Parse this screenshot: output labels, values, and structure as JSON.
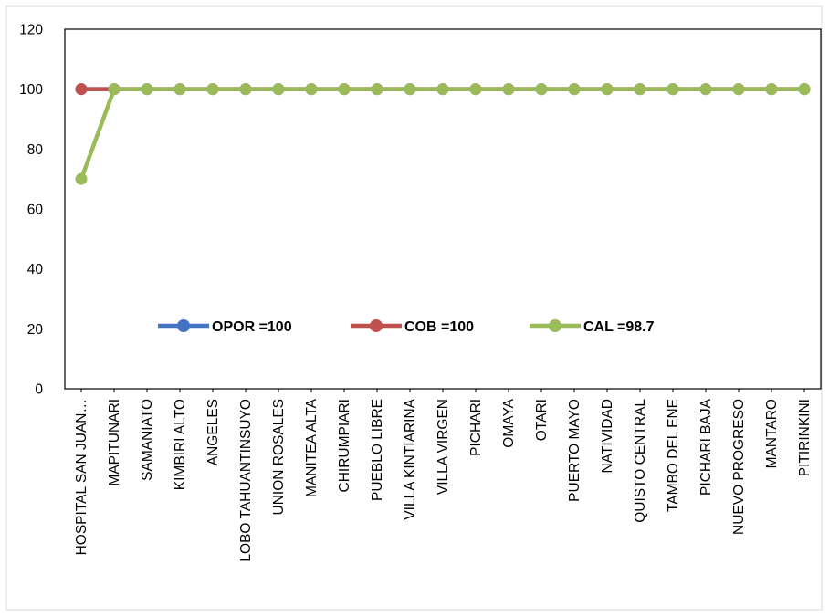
{
  "chart_data": {
    "type": "line",
    "categories": [
      "HOSPITAL SAN JUAN…",
      "MAPITUNARI",
      "SAMANIATO",
      "KIMBIRI ALTO",
      "ANGELES",
      "LOBO TAHUANTINSUYO",
      "UNION ROSALES",
      "MANITEA ALTA",
      "CHIRUMPIARI",
      "PUEBLO LIBRE",
      "VILLA KINTIARINA",
      "VILLA VIRGEN",
      "PICHARI",
      "OMAYA",
      "OTARI",
      "PUERTO MAYO",
      "NATIVIDAD",
      "QUISTO CENTRAL",
      "TAMBO DEL ENE",
      "PICHARI BAJA",
      "NUEVO PROGRESO",
      "MANTARO",
      "PITIRINKINI"
    ],
    "series": [
      {
        "name": "OPOR =100",
        "color": "#4472c4",
        "values": [
          100,
          100,
          100,
          100,
          100,
          100,
          100,
          100,
          100,
          100,
          100,
          100,
          100,
          100,
          100,
          100,
          100,
          100,
          100,
          100,
          100,
          100,
          100
        ]
      },
      {
        "name": "COB =100",
        "color": "#c0504d",
        "values": [
          100,
          100,
          100,
          100,
          100,
          100,
          100,
          100,
          100,
          100,
          100,
          100,
          100,
          100,
          100,
          100,
          100,
          100,
          100,
          100,
          100,
          100,
          100
        ]
      },
      {
        "name": "CAL =98.7",
        "color": "#9bbb59",
        "values": [
          70,
          100,
          100,
          100,
          100,
          100,
          100,
          100,
          100,
          100,
          100,
          100,
          100,
          100,
          100,
          100,
          100,
          100,
          100,
          100,
          100,
          100,
          100
        ]
      }
    ],
    "y_ticks": [
      "0",
      "20",
      "40",
      "60",
      "80",
      "100",
      "120"
    ],
    "ylim": [
      0,
      120
    ],
    "grid": false,
    "legend": "inside, lower-center",
    "title": "",
    "xlabel": "",
    "ylabel": ""
  }
}
